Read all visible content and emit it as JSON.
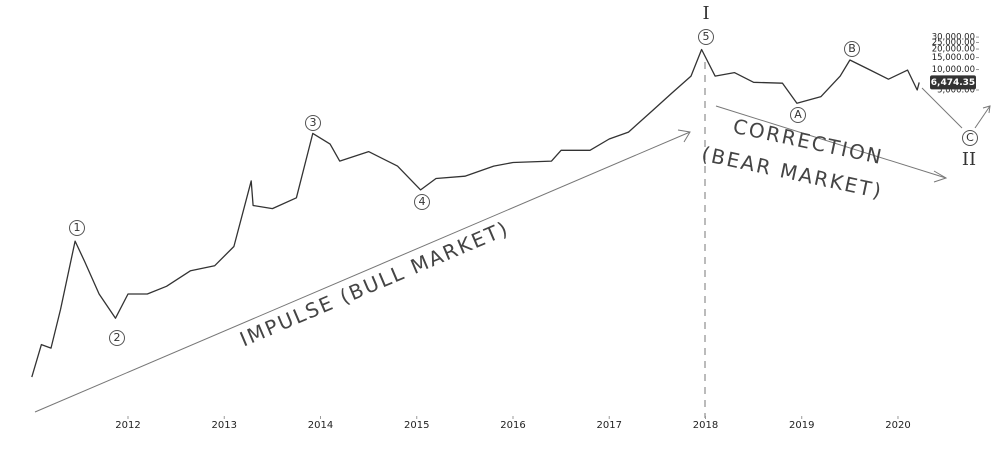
{
  "chart_data": {
    "type": "line",
    "log_scale": true,
    "grid": false,
    "color": "#333333",
    "x": [
      2011.0,
      2011.1,
      2011.2,
      2011.3,
      2011.45,
      2011.55,
      2011.7,
      2011.87,
      2012.0,
      2012.2,
      2012.4,
      2012.65,
      2012.9,
      2013.1,
      2013.28,
      2013.3,
      2013.5,
      2013.75,
      2013.92,
      2014.1,
      2014.2,
      2014.5,
      2014.8,
      2015.04,
      2015.2,
      2015.5,
      2015.8,
      2016.0,
      2016.4,
      2016.5,
      2016.8,
      2017.0,
      2017.2,
      2017.45,
      2017.65,
      2017.85,
      2017.96,
      2018.1,
      2018.3,
      2018.5,
      2018.8,
      2018.95,
      2019.2,
      2019.4,
      2019.5,
      2019.7,
      2019.9,
      2020.1,
      2020.2,
      2020.22
    ],
    "values": [
      0.3,
      0.9,
      0.8,
      3,
      30,
      15,
      5,
      2.2,
      5,
      5,
      6.5,
      11,
      13,
      25,
      230,
      100,
      90,
      130,
      1150,
      800,
      450,
      620,
      380,
      170,
      250,
      270,
      380,
      430,
      450,
      650,
      650,
      950,
      1200,
      2500,
      4500,
      8000,
      19700,
      8000,
      9000,
      6500,
      6300,
      3200,
      4000,
      8000,
      13800,
      10000,
      7200,
      9800,
      5000,
      6474.35
    ],
    "last_value_label": "6,474.35",
    "xlim": [
      2010.67,
      2021.06
    ],
    "xticks": [
      2012,
      2013,
      2014,
      2015,
      2016,
      2017,
      2018,
      2019,
      2020
    ],
    "ylim": [
      0.05,
      50000
    ],
    "yticks": [
      {
        "value": 5000,
        "label": "5,000.00"
      },
      {
        "value": 10000,
        "label": "10,000.00"
      },
      {
        "value": 15000,
        "label": "15,000.00"
      },
      {
        "value": 20000,
        "label": "20,000.00"
      },
      {
        "value": 25000,
        "label": "25,000.00"
      },
      {
        "value": 30000,
        "label": "30,000.00"
      }
    ],
    "annotations": [
      "1",
      "2",
      "3",
      "4",
      "5",
      "A",
      "B",
      "C",
      "I",
      "II",
      "IMPULSE (BULL MARKET)",
      "CORRECTION",
      "(BEAR MARKET)"
    ]
  }
}
